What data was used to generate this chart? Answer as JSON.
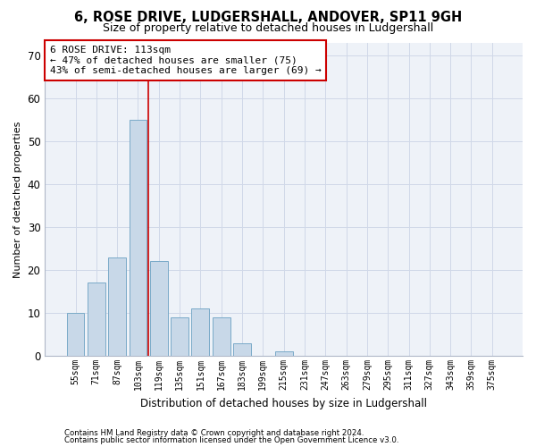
{
  "title": "6, ROSE DRIVE, LUDGERSHALL, ANDOVER, SP11 9GH",
  "subtitle": "Size of property relative to detached houses in Ludgershall",
  "xlabel": "Distribution of detached houses by size in Ludgershall",
  "ylabel": "Number of detached properties",
  "categories": [
    "55sqm",
    "71sqm",
    "87sqm",
    "103sqm",
    "119sqm",
    "135sqm",
    "151sqm",
    "167sqm",
    "183sqm",
    "199sqm",
    "215sqm",
    "231sqm",
    "247sqm",
    "263sqm",
    "279sqm",
    "295sqm",
    "311sqm",
    "327sqm",
    "343sqm",
    "359sqm",
    "375sqm"
  ],
  "values": [
    10,
    17,
    23,
    55,
    22,
    9,
    11,
    9,
    3,
    0,
    1,
    0,
    0,
    0,
    0,
    0,
    0,
    0,
    0,
    0,
    0
  ],
  "bar_color": "#c8d8e8",
  "bar_edge_color": "#7aaac8",
  "grid_color": "#d0d8e8",
  "background_color": "#eef2f8",
  "vline_color": "#cc0000",
  "annotation_text": "6 ROSE DRIVE: 113sqm\n← 47% of detached houses are smaller (75)\n43% of semi-detached houses are larger (69) →",
  "annotation_box_color": "#ffffff",
  "annotation_border_color": "#cc0000",
  "ylim": [
    0,
    73
  ],
  "yticks": [
    0,
    10,
    20,
    30,
    40,
    50,
    60,
    70
  ],
  "vline_x_index": 3.5,
  "footnote1": "Contains HM Land Registry data © Crown copyright and database right 2024.",
  "footnote2": "Contains public sector information licensed under the Open Government Licence v3.0."
}
